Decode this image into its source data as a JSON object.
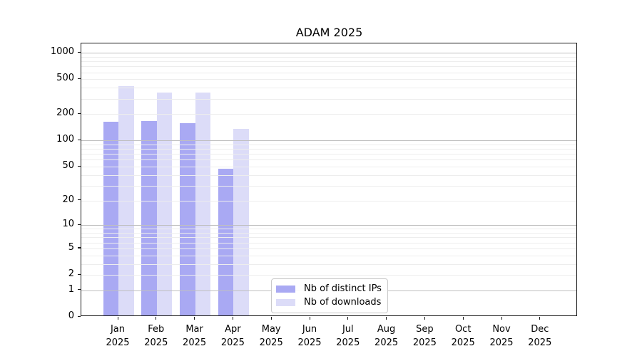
{
  "chart_data": {
    "type": "bar",
    "title": "ADAM 2025",
    "categories": [
      "Jan",
      "Feb",
      "Mar",
      "Apr",
      "May",
      "Jun",
      "Jul",
      "Aug",
      "Sep",
      "Oct",
      "Nov",
      "Dec"
    ],
    "year_label": "2025",
    "series": [
      {
        "name": "Nb of distinct IPs",
        "color": "#a9a9f3",
        "values": [
          165,
          168,
          157,
          47,
          0,
          0,
          0,
          0,
          0,
          0,
          0,
          0
        ]
      },
      {
        "name": "Nb of downloads",
        "color": "#dcdcf8",
        "values": [
          418,
          353,
          353,
          136,
          0,
          0,
          0,
          0,
          0,
          0,
          0,
          0
        ]
      }
    ],
    "xlabel": "",
    "ylabel": "",
    "yscale": "log1p",
    "yticks": [
      1000,
      500,
      200,
      100,
      50,
      20,
      10,
      5,
      2,
      1,
      0
    ],
    "ylim": [
      0,
      1280
    ],
    "grid": true,
    "legend_position": "bottom-center"
  },
  "colors": {
    "background": "#ffffff",
    "axis": "#1a1a1a",
    "major_grid": "#bfbfbf",
    "minor_grid": "#ededed"
  }
}
